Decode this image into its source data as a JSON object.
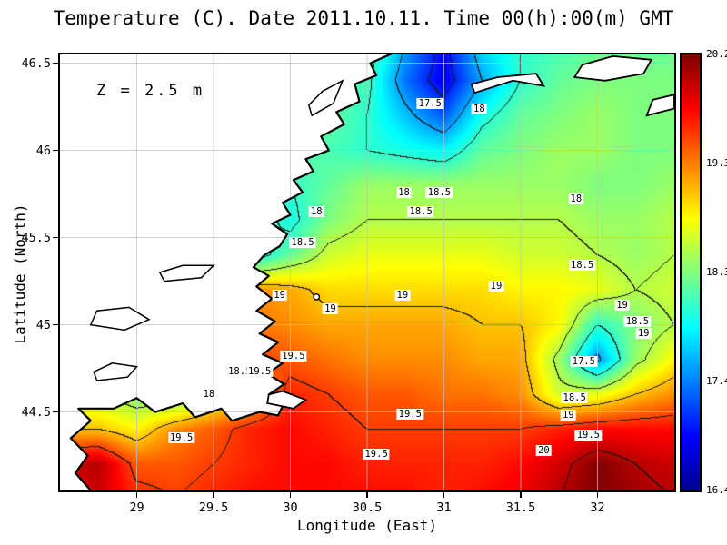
{
  "title": "Temperature (C). Date 2011.10.11. Time 00(h):00(m) GMT",
  "annotation": "Z = 2.5 m",
  "axes": {
    "xlabel": "Longitude (East)",
    "ylabel": "Latitude (North)",
    "x_range": [
      28.5,
      32.5
    ],
    "y_range": [
      44.05,
      46.55
    ],
    "x_ticks": [
      "29",
      "29.5",
      "30",
      "30.5",
      "31",
      "31.5",
      "32"
    ],
    "x_tick_values": [
      29,
      29.5,
      30,
      30.5,
      31,
      31.5,
      32
    ],
    "y_ticks": [
      "46.5",
      "46",
      "45.5",
      "45",
      "44.5"
    ],
    "y_tick_values": [
      46.5,
      46,
      45.5,
      45,
      44.5
    ]
  },
  "colorbar": {
    "min": 16.4,
    "max": 20.2,
    "tick_labels": [
      "20.2",
      "19.3",
      "18.3",
      "17.4",
      "16.4"
    ],
    "jet_stops": [
      [
        0,
        "#00008f"
      ],
      [
        0.125,
        "#0000ff"
      ],
      [
        0.375,
        "#00ffff"
      ],
      [
        0.625,
        "#ffff00"
      ],
      [
        0.875,
        "#ff0000"
      ],
      [
        1,
        "#800000"
      ]
    ]
  },
  "chart_data": {
    "type": "heatmap",
    "units": "C",
    "lon": [
      28.5,
      28.75,
      29.0,
      29.25,
      29.5,
      29.75,
      30.0,
      30.25,
      30.5,
      30.75,
      31.0,
      31.25,
      31.5,
      31.75,
      32.0,
      32.25,
      32.5
    ],
    "lat": [
      46.6,
      46.4,
      46.2,
      46.0,
      45.8,
      45.6,
      45.4,
      45.2,
      45.0,
      44.8,
      44.6,
      44.4,
      44.2,
      44.0
    ],
    "values": [
      [
        18.0,
        18.0,
        18.0,
        18.0,
        18.0,
        18.0,
        18.0,
        18.1,
        18.2,
        17.5,
        16.9,
        17.7,
        18.0,
        18.1,
        18.2,
        18.2,
        18.2
      ],
      [
        18.0,
        18.0,
        18.0,
        18.0,
        18.0,
        18.0,
        18.0,
        18.1,
        18.1,
        17.3,
        16.8,
        17.5,
        18.0,
        18.2,
        18.3,
        18.3,
        18.3
      ],
      [
        18.1,
        18.1,
        18.1,
        18.1,
        18.1,
        18.1,
        18.1,
        18.2,
        18.0,
        17.6,
        17.2,
        17.9,
        18.2,
        18.3,
        18.4,
        18.3,
        18.3
      ],
      [
        18.2,
        18.2,
        18.2,
        18.2,
        18.2,
        18.2,
        18.2,
        18.1,
        18.0,
        17.9,
        17.8,
        18.2,
        18.3,
        18.4,
        18.4,
        18.3,
        18.3
      ],
      [
        18.4,
        18.4,
        18.4,
        18.4,
        18.4,
        18.3,
        18.0,
        18.2,
        18.4,
        18.4,
        18.4,
        18.4,
        18.4,
        18.4,
        18.3,
        18.3,
        18.4
      ],
      [
        18.5,
        18.5,
        18.5,
        18.5,
        18.5,
        18.2,
        17.9,
        18.3,
        18.5,
        18.5,
        18.5,
        18.5,
        18.5,
        18.5,
        18.4,
        18.4,
        18.5
      ],
      [
        18.6,
        18.6,
        18.6,
        18.6,
        18.5,
        17.8,
        18.2,
        18.6,
        18.7,
        18.7,
        18.7,
        18.7,
        18.6,
        18.6,
        18.5,
        18.4,
        18.5
      ],
      [
        18.8,
        18.8,
        18.8,
        18.8,
        18.8,
        19.2,
        19.1,
        18.9,
        18.9,
        18.9,
        18.9,
        18.9,
        18.8,
        18.8,
        18.7,
        18.5,
        18.6
      ],
      [
        19.0,
        19.0,
        19.0,
        19.0,
        19.0,
        19.3,
        19.2,
        19.1,
        19.1,
        19.1,
        19.1,
        19.0,
        19.0,
        18.8,
        18.0,
        18.3,
        18.5
      ],
      [
        19.2,
        19.2,
        19.2,
        19.2,
        19.3,
        19.5,
        19.4,
        19.3,
        19.2,
        19.2,
        19.2,
        19.1,
        19.1,
        18.4,
        17.4,
        18.4,
        18.8
      ],
      [
        18.6,
        18.5,
        18.3,
        18.2,
        18.6,
        19.0,
        19.6,
        19.5,
        19.4,
        19.4,
        19.3,
        19.3,
        19.2,
        18.6,
        18.7,
        19.0,
        19.2
      ],
      [
        19.0,
        19.0,
        18.8,
        19.2,
        19.4,
        19.6,
        19.7,
        19.6,
        19.5,
        19.5,
        19.5,
        19.5,
        19.5,
        19.6,
        19.7,
        19.7,
        19.7
      ],
      [
        19.9,
        20.0,
        19.4,
        19.4,
        19.5,
        19.6,
        19.7,
        19.7,
        19.6,
        19.6,
        19.6,
        19.6,
        19.7,
        19.9,
        20.2,
        20.0,
        19.9
      ],
      [
        19.8,
        19.9,
        19.6,
        19.5,
        19.6,
        19.7,
        19.7,
        19.7,
        19.7,
        19.7,
        19.6,
        19.7,
        19.8,
        20.0,
        20.2,
        20.1,
        20.0
      ]
    ],
    "contour_levels": [
      17,
      17.5,
      18,
      18.5,
      19,
      19.5,
      20
    ],
    "contour_labels": [
      {
        "v": "17.5",
        "lon": 30.91,
        "lat": 46.27
      },
      {
        "v": "18",
        "lon": 31.23,
        "lat": 46.24
      },
      {
        "v": "18",
        "lon": 30.74,
        "lat": 45.76
      },
      {
        "v": "18.5",
        "lon": 30.97,
        "lat": 45.76
      },
      {
        "v": "18.5",
        "lon": 30.85,
        "lat": 45.65
      },
      {
        "v": "18",
        "lon": 30.17,
        "lat": 45.65
      },
      {
        "v": "18",
        "lon": 31.86,
        "lat": 45.72
      },
      {
        "v": "18.5",
        "lon": 30.08,
        "lat": 45.47
      },
      {
        "v": "18.5",
        "lon": 31.9,
        "lat": 45.34
      },
      {
        "v": "19",
        "lon": 31.34,
        "lat": 45.22
      },
      {
        "v": "19",
        "lon": 32.16,
        "lat": 45.11
      },
      {
        "v": "18.5",
        "lon": 32.26,
        "lat": 45.02
      },
      {
        "v": "19",
        "lon": 32.3,
        "lat": 44.95
      },
      {
        "v": "19",
        "lon": 29.93,
        "lat": 45.17
      },
      {
        "v": "19",
        "lon": 30.26,
        "lat": 45.09
      },
      {
        "v": "19",
        "lon": 30.73,
        "lat": 45.17
      },
      {
        "v": "17.5",
        "lon": 31.91,
        "lat": 44.79
      },
      {
        "v": "19.5",
        "lon": 30.02,
        "lat": 44.82
      },
      {
        "v": "18.5",
        "lon": 29.67,
        "lat": 44.73
      },
      {
        "v": "19.5",
        "lon": 29.8,
        "lat": 44.73
      },
      {
        "v": "18",
        "lon": 29.47,
        "lat": 44.6
      },
      {
        "v": "18.5",
        "lon": 31.85,
        "lat": 44.58
      },
      {
        "v": "19",
        "lon": 31.81,
        "lat": 44.48
      },
      {
        "v": "19.5",
        "lon": 30.78,
        "lat": 44.49
      },
      {
        "v": "19.5",
        "lon": 29.29,
        "lat": 44.35
      },
      {
        "v": "19.5",
        "lon": 31.94,
        "lat": 44.37
      },
      {
        "v": "20",
        "lon": 31.65,
        "lat": 44.28
      },
      {
        "v": "19.5",
        "lon": 30.56,
        "lat": 44.26
      }
    ]
  },
  "map": {
    "coastline": [
      [
        28.72,
        44.03
      ],
      [
        28.6,
        44.15
      ],
      [
        28.68,
        44.25
      ],
      [
        28.57,
        44.35
      ],
      [
        28.7,
        44.45
      ],
      [
        28.62,
        44.52
      ],
      [
        28.85,
        44.52
      ],
      [
        29.0,
        44.58
      ],
      [
        29.12,
        44.5
      ],
      [
        29.3,
        44.55
      ],
      [
        29.38,
        44.47
      ],
      [
        29.55,
        44.52
      ],
      [
        29.62,
        44.45
      ],
      [
        29.8,
        44.5
      ],
      [
        29.92,
        44.48
      ],
      [
        29.96,
        44.55
      ],
      [
        29.86,
        44.6
      ],
      [
        29.96,
        44.66
      ],
      [
        29.85,
        44.72
      ],
      [
        29.95,
        44.78
      ],
      [
        29.82,
        44.83
      ],
      [
        29.92,
        44.9
      ],
      [
        29.8,
        44.95
      ],
      [
        29.9,
        45.02
      ],
      [
        29.78,
        45.08
      ],
      [
        29.88,
        45.15
      ],
      [
        29.78,
        45.22
      ],
      [
        29.86,
        45.28
      ],
      [
        29.76,
        45.33
      ],
      [
        29.83,
        45.4
      ],
      [
        29.93,
        45.45
      ],
      [
        29.98,
        45.52
      ],
      [
        29.88,
        45.58
      ],
      [
        30.0,
        45.63
      ],
      [
        29.95,
        45.7
      ],
      [
        30.08,
        45.76
      ],
      [
        30.02,
        45.83
      ],
      [
        30.15,
        45.88
      ],
      [
        30.1,
        45.95
      ],
      [
        30.25,
        46.0
      ],
      [
        30.2,
        46.08
      ],
      [
        30.35,
        46.15
      ],
      [
        30.3,
        46.22
      ],
      [
        30.45,
        46.28
      ],
      [
        30.42,
        46.38
      ],
      [
        30.56,
        46.43
      ],
      [
        30.52,
        46.5
      ],
      [
        30.7,
        46.57
      ],
      [
        28.44,
        46.57
      ],
      [
        28.44,
        44.03
      ]
    ],
    "islands": [
      [
        [
          31.2,
          46.33
        ],
        [
          31.45,
          46.4
        ],
        [
          31.65,
          46.37
        ],
        [
          31.6,
          46.44
        ],
        [
          31.35,
          46.42
        ],
        [
          31.18,
          46.38
        ]
      ],
      [
        [
          31.85,
          46.42
        ],
        [
          32.05,
          46.4
        ],
        [
          32.3,
          46.44
        ],
        [
          32.35,
          46.52
        ],
        [
          32.1,
          46.54
        ],
        [
          31.9,
          46.49
        ]
      ],
      [
        [
          32.32,
          46.2
        ],
        [
          32.5,
          46.24
        ],
        [
          32.5,
          46.32
        ],
        [
          32.36,
          46.29
        ]
      ],
      [
        [
          29.85,
          44.55
        ],
        [
          30.02,
          44.52
        ],
        [
          30.1,
          44.57
        ],
        [
          29.95,
          44.62
        ],
        [
          29.86,
          44.6
        ]
      ]
    ],
    "lakes": [
      [
        [
          28.7,
          45.0
        ],
        [
          28.92,
          44.97
        ],
        [
          29.08,
          45.03
        ],
        [
          28.95,
          45.1
        ],
        [
          28.74,
          45.08
        ]
      ],
      [
        [
          28.74,
          44.68
        ],
        [
          28.94,
          44.7
        ],
        [
          29.0,
          44.76
        ],
        [
          28.84,
          44.78
        ],
        [
          28.72,
          44.73
        ]
      ],
      [
        [
          30.14,
          46.2
        ],
        [
          30.28,
          46.27
        ],
        [
          30.34,
          46.4
        ],
        [
          30.21,
          46.34
        ],
        [
          30.12,
          46.26
        ]
      ],
      [
        [
          29.18,
          45.25
        ],
        [
          29.42,
          45.27
        ],
        [
          29.5,
          45.34
        ],
        [
          29.3,
          45.34
        ],
        [
          29.15,
          45.3
        ]
      ]
    ],
    "point_island": {
      "lon": 30.17,
      "lat": 45.16
    }
  }
}
